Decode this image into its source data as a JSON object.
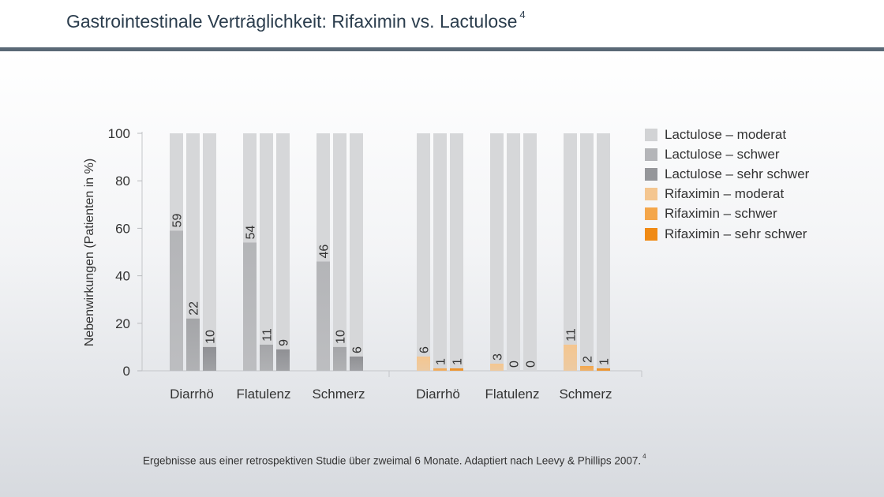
{
  "page": {
    "title": "Gastrointestinale Verträglichkeit: Rifaximin vs. Lactulose",
    "title_ref": "4",
    "footnote": "Ergebnisse aus einer retrospektiven Studie über zweimal 6 Monate. Adaptiert nach Leevy & Phillips 2007.",
    "footnote_ref": "4"
  },
  "chart_data": {
    "type": "bar",
    "ylabel": "Nebenwirkungen (Patienten in %)",
    "xlabel": "",
    "ylim": [
      0,
      100
    ],
    "yticks": [
      0,
      20,
      40,
      60,
      80,
      100
    ],
    "grid": false,
    "legend_position": "right",
    "background_bar_value": 100,
    "legend": [
      {
        "label": "Lactulose – moderat",
        "color": "#d2d3d5"
      },
      {
        "label": "Lactulose – schwer",
        "color": "#b4b5b8"
      },
      {
        "label": "Lactulose – sehr schwer",
        "color": "#95969a"
      },
      {
        "label": "Rifaximin – moderat",
        "color": "#f4c690"
      },
      {
        "label": "Rifaximin – schwer",
        "color": "#f4a64a"
      },
      {
        "label": "Rifaximin – sehr schwer",
        "color": "#f08a14"
      }
    ],
    "groups": [
      {
        "drug": "Lactulose",
        "categories": [
          "Diarrhö",
          "Flatulenz",
          "Schmerz"
        ],
        "series": [
          {
            "name": "Lactulose – moderat",
            "color": "#b4b5b8",
            "values": [
              59,
              54,
              46
            ]
          },
          {
            "name": "Lactulose – schwer",
            "color": "#a4a5a8",
            "values": [
              22,
              11,
              10
            ]
          },
          {
            "name": "Lactulose – sehr schwer",
            "color": "#8f9094",
            "values": [
              10,
              9,
              6
            ]
          }
        ]
      },
      {
        "drug": "Rifaximin",
        "categories": [
          "Diarrhö",
          "Flatulenz",
          "Schmerz"
        ],
        "series": [
          {
            "name": "Rifaximin – moderat",
            "color": "#f4c690",
            "values": [
              6,
              3,
              11
            ]
          },
          {
            "name": "Rifaximin – schwer",
            "color": "#f4a64a",
            "values": [
              1,
              0,
              2
            ]
          },
          {
            "name": "Rifaximin – sehr schwer",
            "color": "#f08a14",
            "values": [
              1,
              0,
              1
            ]
          }
        ]
      }
    ]
  }
}
